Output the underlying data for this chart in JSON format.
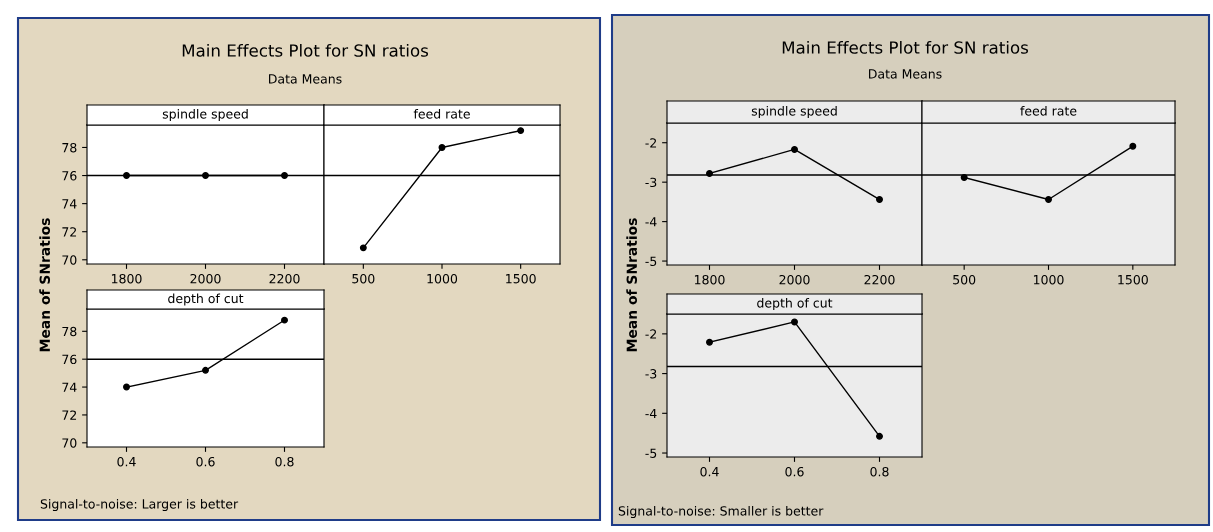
{
  "chart_data": [
    {
      "type": "line",
      "title": "Main Effects Plot for SN ratios",
      "subtitle": "Data Means",
      "ylabel": "Mean of SNratios",
      "annotations": [
        "Signal-to-noise: Larger is better"
      ],
      "xlabel": "spindle speed",
      "categories": [
        "1800",
        "2000",
        "2200"
      ],
      "series": [
        {
          "color": "#000000",
          "values": [
            76.0,
            76.0,
            76.0
          ]
        }
      ],
      "ylim": [
        69.7,
        79.6
      ],
      "yticks": [
        70,
        72,
        74,
        76,
        78
      ],
      "ref_lines": [
        {
          "axis": "y",
          "value": 76.0,
          "color": "#000000"
        }
      ],
      "marker": "circle"
    },
    {
      "type": "line",
      "xlabel": "feed rate",
      "categories": [
        "500",
        "1000",
        "1500"
      ],
      "series": [
        {
          "color": "#000000",
          "values": [
            70.85,
            78.0,
            79.2
          ]
        }
      ],
      "ylim": [
        69.7,
        79.6
      ],
      "tick_labels": "x",
      "ref_lines": [
        {
          "axis": "y",
          "value": 76.0,
          "color": "#000000"
        }
      ],
      "marker": "circle"
    },
    {
      "type": "line",
      "xlabel": "depth of cut",
      "categories": [
        "0.4",
        "0.6",
        "0.8"
      ],
      "series": [
        {
          "color": "#000000",
          "values": [
            74.0,
            75.2,
            78.8
          ]
        }
      ],
      "ylim": [
        69.7,
        79.6
      ],
      "yticks": [
        70,
        72,
        74,
        76,
        78
      ],
      "ref_lines": [
        {
          "axis": "y",
          "value": 76.0,
          "color": "#000000"
        }
      ],
      "marker": "circle"
    },
    {
      "type": "line",
      "title": "Main Effects Plot for SN ratios",
      "subtitle": "Data Means",
      "ylabel": "Mean of SNratios",
      "annotations": [
        "Signal-to-noise: Smaller is better"
      ],
      "xlabel": "spindle speed",
      "categories": [
        "1800",
        "2000",
        "2200"
      ],
      "series": [
        {
          "color": "#000000",
          "values": [
            -2.78,
            -2.17,
            -3.44
          ]
        }
      ],
      "ylim": [
        -5.1,
        -1.5
      ],
      "yticks": [
        {
          "value": -2,
          "label": "-2"
        },
        {
          "value": -3,
          "label": "-3"
        },
        {
          "value": -4,
          "label": "-4"
        },
        {
          "value": -5,
          "label": "-5"
        }
      ],
      "ref_lines": [
        {
          "axis": "y",
          "value": -2.82,
          "color": "#000000"
        }
      ],
      "marker": "circle"
    },
    {
      "type": "line",
      "xlabel": "feed rate",
      "categories": [
        "500",
        "1000",
        "1500"
      ],
      "series": [
        {
          "color": "#000000",
          "values": [
            -2.88,
            -3.44,
            -2.09
          ]
        }
      ],
      "ylim": [
        -5.1,
        -1.5
      ],
      "tick_labels": "x",
      "ref_lines": [
        {
          "axis": "y",
          "value": -2.82,
          "color": "#000000"
        }
      ],
      "marker": "circle"
    },
    {
      "type": "line",
      "xlabel": "depth of cut",
      "categories": [
        "0.4",
        "0.6",
        "0.8"
      ],
      "series": [
        {
          "color": "#000000",
          "values": [
            -2.21,
            -1.7,
            -4.58
          ]
        }
      ],
      "ylim": [
        -5.1,
        -1.5
      ],
      "yticks": [
        {
          "value": -2,
          "label": "-2"
        },
        {
          "value": -3,
          "label": "-3"
        },
        {
          "value": -4,
          "label": "-4"
        },
        {
          "value": -5,
          "label": "-5"
        }
      ],
      "ref_lines": [
        {
          "axis": "y",
          "value": -2.82,
          "color": "#000000"
        }
      ],
      "marker": "circle"
    }
  ]
}
